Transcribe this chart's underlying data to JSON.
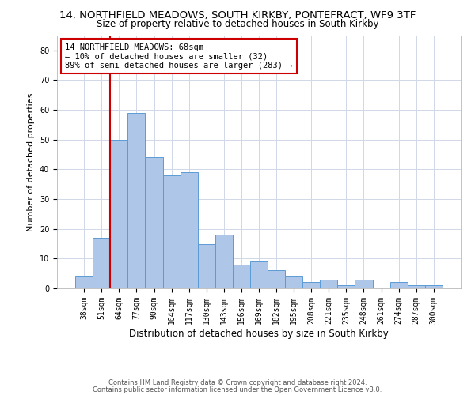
{
  "title_line1": "14, NORTHFIELD MEADOWS, SOUTH KIRKBY, PONTEFRACT, WF9 3TF",
  "title_line2": "Size of property relative to detached houses in South Kirkby",
  "xlabel": "Distribution of detached houses by size in South Kirkby",
  "ylabel": "Number of detached properties",
  "categories": [
    "38sqm",
    "51sqm",
    "64sqm",
    "77sqm",
    "90sqm",
    "104sqm",
    "117sqm",
    "130sqm",
    "143sqm",
    "156sqm",
    "169sqm",
    "182sqm",
    "195sqm",
    "208sqm",
    "221sqm",
    "235sqm",
    "248sqm",
    "261sqm",
    "274sqm",
    "287sqm",
    "300sqm"
  ],
  "values": [
    4,
    17,
    50,
    59,
    44,
    38,
    39,
    15,
    18,
    8,
    9,
    6,
    4,
    2,
    3,
    1,
    3,
    0,
    2,
    1,
    1
  ],
  "bar_color": "#aec6e8",
  "bar_edgecolor": "#5b9bd5",
  "vline_color": "#cc0000",
  "vline_x_index": 2,
  "annotation_text": "14 NORTHFIELD MEADOWS: 68sqm\n← 10% of detached houses are smaller (32)\n89% of semi-detached houses are larger (283) →",
  "annotation_box_color": "#ffffff",
  "annotation_box_edgecolor": "#cc0000",
  "ylim": [
    0,
    85
  ],
  "yticks": [
    0,
    10,
    20,
    30,
    40,
    50,
    60,
    70,
    80
  ],
  "grid_color": "#d0d8e8",
  "footnote1": "Contains HM Land Registry data © Crown copyright and database right 2024.",
  "footnote2": "Contains public sector information licensed under the Open Government Licence v3.0.",
  "title_fontsize": 9.5,
  "subtitle_fontsize": 8.5,
  "xlabel_fontsize": 8.5,
  "ylabel_fontsize": 8.0,
  "tick_fontsize": 7.0,
  "annotation_fontsize": 7.5,
  "footnote_fontsize": 6.0
}
